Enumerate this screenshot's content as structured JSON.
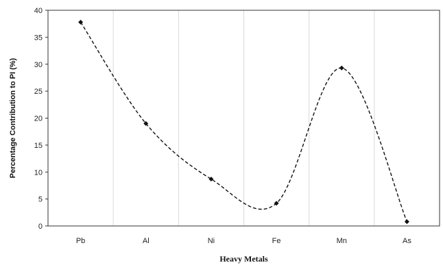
{
  "chart_data": {
    "type": "line",
    "title": "",
    "xlabel": "Heavy Metals",
    "ylabel": "Percentage Contribution to PI (%)",
    "categories": [
      "Pb",
      "Al",
      "Ni",
      "Fe",
      "Mn",
      "As"
    ],
    "values": [
      37.8,
      19.0,
      8.7,
      4.2,
      29.3,
      0.8
    ],
    "ylim": [
      0,
      40
    ],
    "yticks": [
      "0",
      "5",
      "10",
      "15",
      "20",
      "25",
      "30",
      "35",
      "40"
    ],
    "grid": "vertical",
    "line_style": "dashed-smooth",
    "marker": "diamond",
    "colors": {
      "line": "#111111",
      "marker": "#111111",
      "grid": "#d9d9d9",
      "axis": "#333333"
    }
  }
}
